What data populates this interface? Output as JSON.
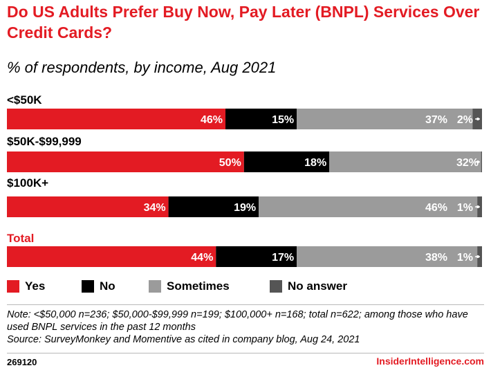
{
  "title": "Do US Adults Prefer Buy Now, Pay Later (BNPL) Services Over Credit Cards?",
  "subtitle": "% of respondents, by income, Aug 2021",
  "colors": {
    "accent": "#e31b23",
    "yes": "#e31b23",
    "no": "#000000",
    "sometimes": "#9b9b9b",
    "no_answer": "#555555"
  },
  "chart_data": {
    "type": "bar",
    "orientation": "horizontal",
    "stacked": true,
    "categories": [
      "<$50K",
      "$50K-$99,999",
      "$100K+",
      "Total"
    ],
    "series": [
      {
        "name": "Yes",
        "values": [
          46,
          50,
          34,
          44
        ]
      },
      {
        "name": "No",
        "values": [
          15,
          18,
          19,
          17
        ]
      },
      {
        "name": "Sometimes",
        "values": [
          37,
          32,
          46,
          38
        ]
      },
      {
        "name": "No answer",
        "values": [
          2,
          0.2,
          1,
          1
        ]
      }
    ],
    "data_labels": [
      [
        "46%",
        "15%",
        "37%",
        "2%"
      ],
      [
        "50%",
        "18%",
        "32%",
        ""
      ],
      [
        "34%",
        "19%",
        "46%",
        "1%"
      ],
      [
        "44%",
        "17%",
        "38%",
        "1%"
      ]
    ],
    "highlight_category": "Total",
    "legend_position": "bottom",
    "grid": false
  },
  "legend": [
    "Yes",
    "No",
    "Sometimes",
    "No answer"
  ],
  "note": "Note: <$50,000 n=236; $50,000-$99,999 n=199; $100,000+ n=168; total n=622; among those who have used BNPL services in the past 12 months",
  "source": "Source: SurveyMonkey and Momentive as cited in company blog, Aug 24, 2021",
  "chart_id": "269120",
  "brand": "InsiderIntelligence.com"
}
